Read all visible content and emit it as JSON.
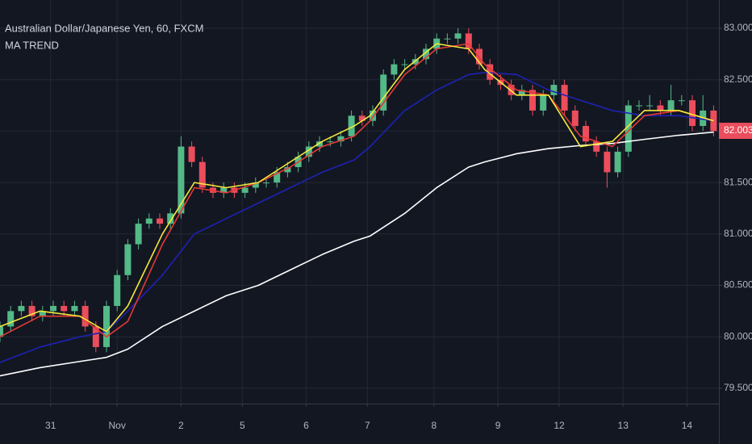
{
  "chart_data": {
    "type": "candlestick",
    "title": "Australian Dollar/Japanese Yen, 60, FXCM",
    "subtitle": "MA TREND",
    "x": [
      0,
      4,
      8,
      12,
      16,
      20,
      24,
      28,
      32,
      36,
      40,
      44,
      48,
      52,
      56,
      60,
      64,
      68,
      72,
      76,
      80,
      84,
      88,
      92,
      96,
      100,
      104,
      108,
      112,
      116,
      120,
      124,
      128,
      132,
      136,
      140,
      144,
      148,
      152,
      156,
      160,
      164,
      168,
      172,
      176,
      180,
      184,
      188,
      192,
      196,
      200,
      204,
      208,
      212,
      216,
      220,
      224,
      228,
      232,
      236,
      240,
      244,
      248,
      252,
      256,
      260,
      264,
      268
    ],
    "open": [
      80.0,
      80.1,
      80.25,
      80.3,
      80.2,
      80.25,
      80.3,
      80.25,
      80.3,
      80.1,
      79.9,
      80.3,
      80.6,
      80.9,
      81.1,
      81.15,
      81.1,
      81.2,
      81.85,
      81.7,
      81.45,
      81.4,
      81.45,
      81.4,
      81.45,
      81.5,
      81.5,
      81.6,
      81.65,
      81.75,
      81.85,
      81.9,
      81.9,
      81.95,
      82.15,
      82.1,
      82.2,
      82.55,
      82.65,
      82.65,
      82.7,
      82.8,
      82.9,
      82.9,
      82.95,
      82.8,
      82.65,
      82.5,
      82.45,
      82.35,
      82.4,
      82.2,
      82.35,
      82.45,
      82.2,
      82.05,
      81.9,
      81.8,
      81.6,
      81.8,
      82.25,
      82.25,
      82.25,
      82.2,
      82.3,
      82.3,
      82.05,
      82.2
    ],
    "high": [
      80.15,
      80.3,
      80.35,
      80.35,
      80.3,
      80.35,
      80.35,
      80.35,
      80.35,
      80.15,
      80.35,
      80.65,
      80.95,
      81.15,
      81.2,
      81.2,
      81.25,
      81.95,
      81.9,
      81.75,
      81.5,
      81.5,
      81.5,
      81.5,
      81.55,
      81.55,
      81.65,
      81.7,
      81.8,
      81.9,
      81.95,
      81.95,
      82.0,
      82.2,
      82.2,
      82.25,
      82.6,
      82.7,
      82.7,
      82.75,
      82.85,
      82.95,
      82.95,
      83.0,
      83.0,
      82.85,
      82.7,
      82.55,
      82.5,
      82.45,
      82.45,
      82.4,
      82.5,
      82.5,
      82.25,
      82.1,
      81.95,
      81.85,
      81.85,
      82.3,
      82.3,
      82.35,
      82.3,
      82.45,
      82.35,
      82.35,
      82.35,
      82.25
    ],
    "low": [
      79.95,
      80.05,
      80.2,
      80.15,
      80.15,
      80.2,
      80.2,
      80.2,
      80.05,
      79.85,
      79.85,
      80.25,
      80.55,
      80.85,
      81.05,
      81.05,
      81.05,
      81.15,
      81.65,
      81.4,
      81.35,
      81.35,
      81.35,
      81.35,
      81.4,
      81.45,
      81.45,
      81.55,
      81.6,
      81.7,
      81.8,
      81.85,
      81.85,
      81.9,
      82.05,
      82.05,
      82.15,
      82.5,
      82.6,
      82.6,
      82.65,
      82.75,
      82.85,
      82.85,
      82.75,
      82.6,
      82.45,
      82.4,
      82.3,
      82.3,
      82.15,
      82.15,
      82.3,
      82.15,
      82.0,
      81.85,
      81.75,
      81.45,
      81.55,
      81.75,
      82.2,
      82.2,
      82.15,
      82.15,
      82.25,
      82.0,
      82.0,
      81.95
    ],
    "close": [
      80.1,
      80.25,
      80.3,
      80.2,
      80.25,
      80.3,
      80.25,
      80.3,
      80.1,
      79.9,
      80.3,
      80.6,
      80.9,
      81.1,
      81.15,
      81.1,
      81.2,
      81.85,
      81.7,
      81.45,
      81.4,
      81.45,
      81.4,
      81.45,
      81.5,
      81.5,
      81.6,
      81.65,
      81.75,
      81.85,
      81.9,
      81.9,
      81.95,
      82.15,
      82.1,
      82.2,
      82.55,
      82.65,
      82.65,
      82.7,
      82.8,
      82.9,
      82.9,
      82.95,
      82.8,
      82.65,
      82.5,
      82.45,
      82.35,
      82.4,
      82.2,
      82.35,
      82.45,
      82.2,
      82.05,
      81.9,
      81.8,
      81.6,
      81.8,
      82.25,
      82.25,
      82.25,
      82.2,
      82.3,
      82.3,
      82.05,
      82.2,
      82.0
    ],
    "up_color": "#53b987",
    "down_color": "#eb4d5c",
    "series": [
      {
        "color": "#ffffff",
        "x": [
          0,
          15,
          30,
          40,
          48,
          61,
          73,
          85,
          97,
          109,
          121,
          133,
          139,
          152,
          164,
          176,
          182,
          194,
          206,
          218,
          230,
          242,
          255,
          268
        ],
        "values": [
          79.62,
          79.7,
          79.76,
          79.8,
          79.88,
          80.1,
          80.25,
          80.4,
          80.5,
          80.65,
          80.8,
          80.93,
          80.98,
          81.2,
          81.45,
          81.65,
          81.7,
          81.78,
          81.83,
          81.86,
          81.88,
          81.92,
          81.96,
          81.99
        ]
      },
      {
        "color": "#1e22b4",
        "x": [
          0,
          15,
          30,
          40,
          48,
          61,
          73,
          85,
          97,
          109,
          121,
          133,
          139,
          152,
          164,
          176,
          182,
          194,
          206,
          218,
          230,
          242,
          255,
          268
        ],
        "values": [
          79.75,
          79.9,
          80.0,
          80.05,
          80.25,
          80.6,
          81.0,
          81.15,
          81.3,
          81.45,
          81.6,
          81.72,
          81.85,
          82.2,
          82.4,
          82.55,
          82.57,
          82.55,
          82.4,
          82.3,
          82.2,
          82.15,
          82.15,
          82.1
        ]
      },
      {
        "color": "#e53935",
        "x": [
          0,
          15,
          30,
          40,
          48,
          61,
          73,
          85,
          97,
          109,
          121,
          133,
          139,
          152,
          164,
          176,
          182,
          194,
          206,
          218,
          230,
          242,
          255,
          268
        ],
        "values": [
          80.0,
          80.2,
          80.2,
          80.0,
          80.15,
          80.9,
          81.45,
          81.4,
          81.5,
          81.65,
          81.85,
          81.95,
          82.1,
          82.55,
          82.8,
          82.85,
          82.65,
          82.4,
          82.35,
          81.95,
          81.85,
          82.15,
          82.2,
          82.1
        ]
      },
      {
        "color": "#f5e93b",
        "x": [
          0,
          15,
          30,
          40,
          48,
          61,
          73,
          85,
          97,
          109,
          121,
          133,
          139,
          152,
          164,
          176,
          182,
          194,
          206,
          218,
          230,
          242,
          255,
          268
        ],
        "values": [
          80.1,
          80.25,
          80.2,
          80.05,
          80.3,
          81.0,
          81.5,
          81.45,
          81.5,
          81.7,
          81.9,
          82.05,
          82.15,
          82.6,
          82.85,
          82.8,
          82.6,
          82.35,
          82.35,
          81.85,
          81.9,
          82.2,
          82.2,
          82.1
        ]
      }
    ],
    "last_value": 82.003,
    "last_color": "#eb4d5c",
    "xlim": [
      0,
      270
    ],
    "ylim": [
      79.35,
      83.275
    ],
    "xticks": [
      {
        "value": 19,
        "label": "31"
      },
      {
        "value": 44,
        "label": "Nov"
      },
      {
        "value": 68,
        "label": "2"
      },
      {
        "value": 91,
        "label": "5"
      },
      {
        "value": 115,
        "label": "6"
      },
      {
        "value": 138,
        "label": "7"
      },
      {
        "value": 163,
        "label": "8"
      },
      {
        "value": 187,
        "label": "9"
      },
      {
        "value": 210,
        "label": "12"
      },
      {
        "value": 234,
        "label": "13"
      },
      {
        "value": 258,
        "label": "14"
      }
    ],
    "yticks": [
      {
        "value": 79.5,
        "label": "79.500"
      },
      {
        "value": 80,
        "label": "80.000"
      },
      {
        "value": 80.5,
        "label": "80.500"
      },
      {
        "value": 81,
        "label": "81.000"
      },
      {
        "value": 81.5,
        "label": "81.500"
      },
      {
        "value": 82,
        "label": "82.000"
      },
      {
        "value": 82.5,
        "label": "82.500"
      },
      {
        "value": 83,
        "label": "83.000"
      }
    ],
    "grid": true
  }
}
